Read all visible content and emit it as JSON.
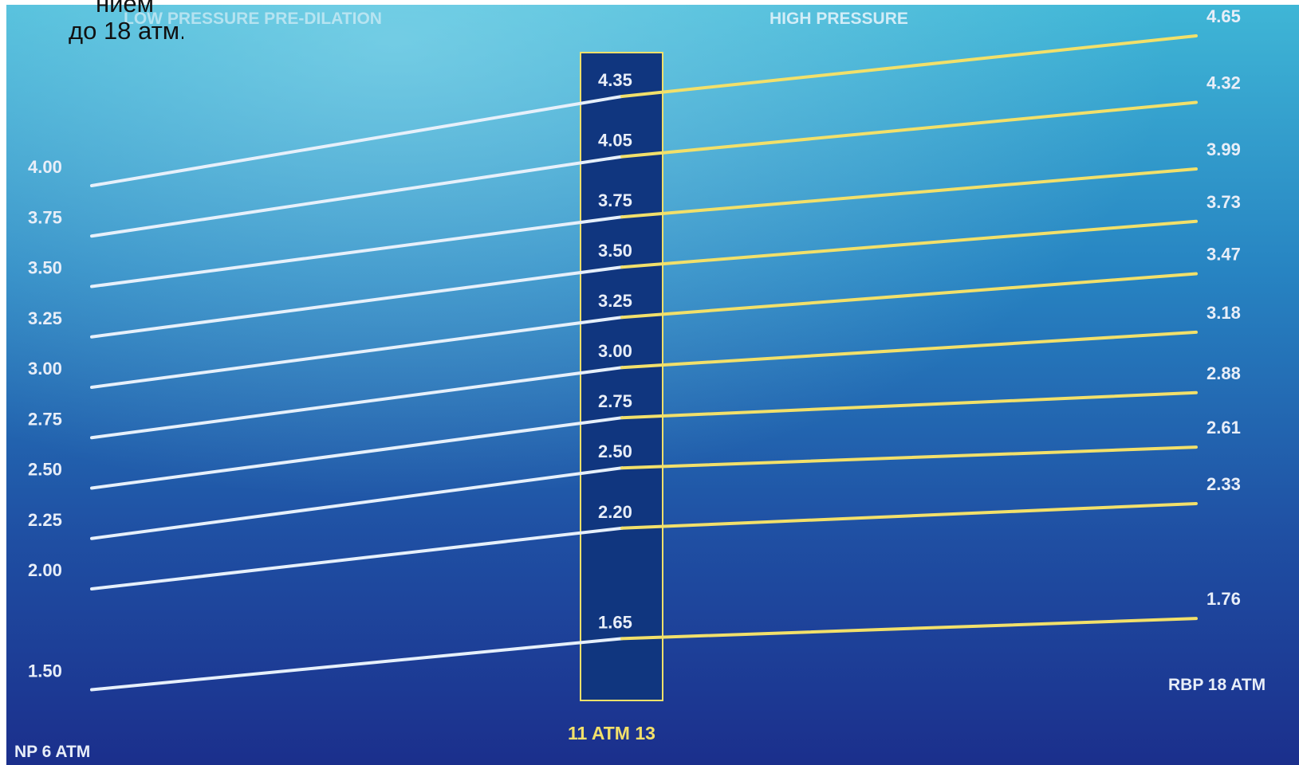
{
  "caption_fragment": {
    "line1": "нием",
    "line2": "до 18 атм."
  },
  "header": {
    "left": "LOW PRESSURE PRE-DILATION",
    "right": "HIGH PRESSURE"
  },
  "colors": {
    "bg_top": "#3fb6d6",
    "bg_mid": "#1f6fb3",
    "bg_bottom": "#1b2f8c",
    "column": "#10367f",
    "line_low": "#e6f0fb",
    "line_high": "#f2e06a",
    "label": "#e8eef8",
    "accent_text": "#f2e06a"
  },
  "chart_data": {
    "type": "line",
    "x": [
      "NP 6 ATM",
      "11 ATM 13",
      "RBP 18 ATM"
    ],
    "x_labels": {
      "nominal": "NP 6 ATM",
      "mid": "11 ATM 13",
      "rated": "RBP 18 ATM"
    },
    "series": [
      {
        "values": [
          1.5,
          1.65,
          1.76
        ],
        "labels": [
          "1.50",
          "1.65",
          "1.76"
        ]
      },
      {
        "values": [
          2.0,
          2.2,
          2.33
        ],
        "labels": [
          "2.00",
          "2.20",
          "2.33"
        ]
      },
      {
        "values": [
          2.25,
          2.5,
          2.61
        ],
        "labels": [
          "2.25",
          "2.50",
          "2.61"
        ]
      },
      {
        "values": [
          2.5,
          2.75,
          2.88
        ],
        "labels": [
          "2.50",
          "2.75",
          "2.88"
        ]
      },
      {
        "values": [
          2.75,
          3.0,
          3.18
        ],
        "labels": [
          "2.75",
          "3.00",
          "3.18"
        ]
      },
      {
        "values": [
          3.0,
          3.25,
          3.47
        ],
        "labels": [
          "3.00",
          "3.25",
          "3.47"
        ]
      },
      {
        "values": [
          3.25,
          3.5,
          3.73
        ],
        "labels": [
          "3.25",
          "3.50",
          "3.73"
        ]
      },
      {
        "values": [
          3.5,
          3.75,
          3.99
        ],
        "labels": [
          "3.50",
          "3.75",
          "3.99"
        ]
      },
      {
        "values": [
          3.75,
          4.05,
          4.32
        ],
        "labels": [
          "3.75",
          "4.05",
          "4.32"
        ]
      },
      {
        "values": [
          4.0,
          4.35,
          4.65
        ],
        "labels": [
          "4.00",
          "4.35",
          "4.65"
        ]
      }
    ],
    "grid": false,
    "legend": "none"
  }
}
